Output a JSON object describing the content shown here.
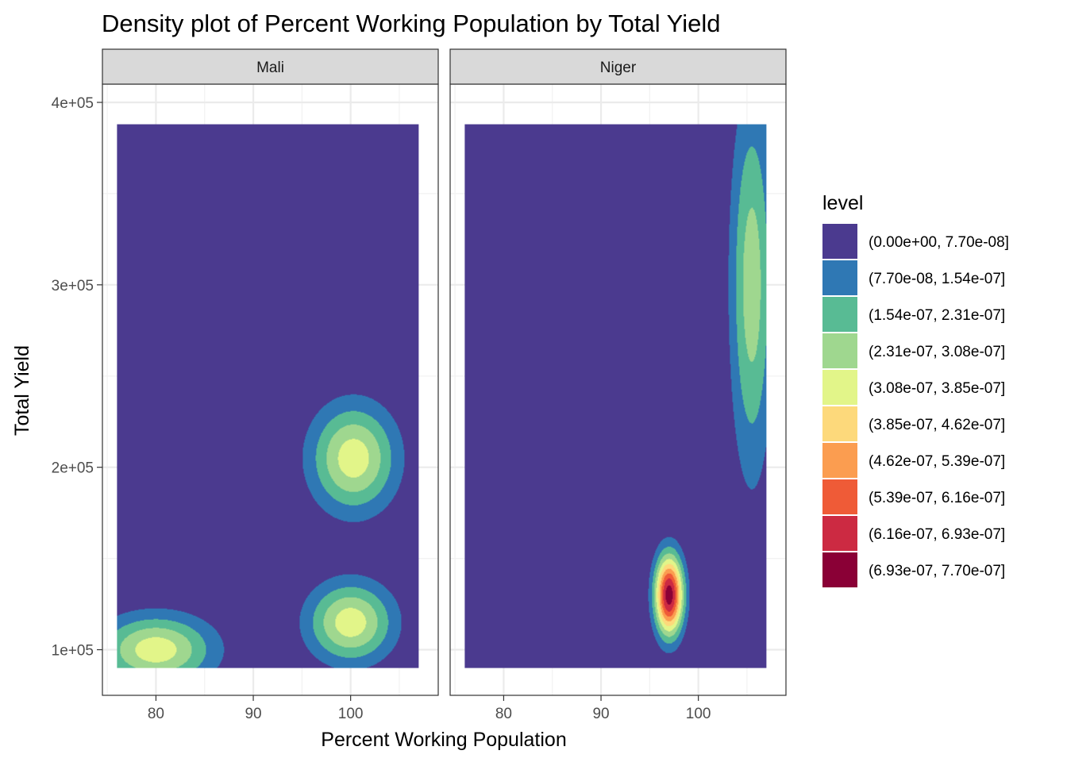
{
  "chart_data": {
    "type": "heatmap",
    "subtype": "filled-density-contour",
    "title": "Density plot of Percent Working Population by Total Yield",
    "xlabel": "Percent Working Population",
    "ylabel": "Total Yield",
    "xlim": [
      74.5,
      109
    ],
    "ylim": [
      75000,
      410000
    ],
    "data_extent": {
      "x": [
        76,
        107
      ],
      "y": [
        90000,
        388000
      ]
    },
    "x_ticks": [
      80,
      90,
      100
    ],
    "x_tick_labels": [
      "80",
      "90",
      "100"
    ],
    "y_ticks": [
      100000,
      200000,
      300000,
      400000
    ],
    "y_tick_labels": [
      "1e+05",
      "2e+05",
      "3e+05",
      "4e+05"
    ],
    "grid": true,
    "legend_position": "right",
    "legend": {
      "title": "level",
      "entries": [
        {
          "label": "(0.00e+00, 7.70e-08]",
          "color": "#4B3A8F"
        },
        {
          "label": "(7.70e-08, 1.54e-07]",
          "color": "#2F78B4"
        },
        {
          "label": "(1.54e-07, 2.31e-07]",
          "color": "#58BB94"
        },
        {
          "label": "(2.31e-07, 3.08e-07]",
          "color": "#9FD78F"
        },
        {
          "label": "(3.08e-07, 3.85e-07]",
          "color": "#E2F589"
        },
        {
          "label": "(3.85e-07, 4.62e-07]",
          "color": "#FDD97B"
        },
        {
          "label": "(4.62e-07, 5.39e-07]",
          "color": "#FB9D50"
        },
        {
          "label": "(5.39e-07, 6.16e-07]",
          "color": "#EF5B37"
        },
        {
          "label": "(6.16e-07, 6.93e-07]",
          "color": "#CC2A42"
        },
        {
          "label": "(6.93e-07, 7.70e-07]",
          "color": "#8A0036"
        }
      ]
    },
    "panels": [
      {
        "name": "Mali",
        "peaks": [
          {
            "x": 80,
            "y": 100000,
            "sx": 4,
            "sy": 13000,
            "level": 4
          },
          {
            "x": 100,
            "y": 115000,
            "sx": 3,
            "sy": 15000,
            "level": 4
          },
          {
            "x": 100.3,
            "y": 205000,
            "sx": 3,
            "sy": 20000,
            "level": 4
          }
        ]
      },
      {
        "name": "Niger",
        "peaks": [
          {
            "x": 97,
            "y": 130000,
            "sx": 1,
            "sy": 15000,
            "level": 9
          },
          {
            "x": 105.5,
            "y": 300000,
            "sx": 1.5,
            "sy": 70000,
            "level": 3
          }
        ]
      }
    ]
  }
}
